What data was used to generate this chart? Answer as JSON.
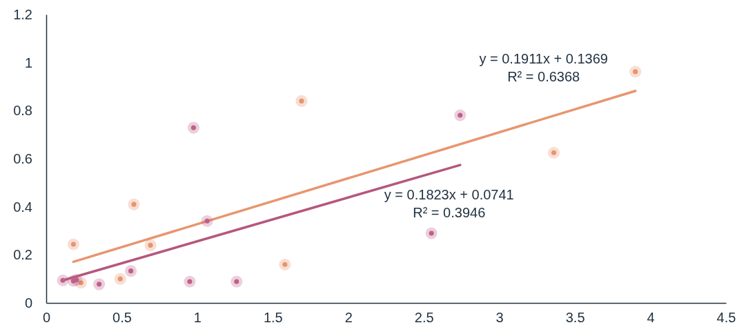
{
  "chart_data": {
    "type": "scatter",
    "xlim": [
      0,
      4.5
    ],
    "ylim": [
      0,
      1.2
    ],
    "xticks": [
      0,
      0.5,
      1,
      1.5,
      2,
      2.5,
      3,
      3.5,
      4,
      4.5
    ],
    "yticks": [
      0,
      0.2,
      0.4,
      0.6,
      0.8,
      1,
      1.2
    ],
    "marker": "circle",
    "grid": false,
    "series": [
      {
        "color": "#e8956f",
        "x": [
          0.18,
          0.23,
          0.49,
          0.58,
          0.69,
          1.58,
          1.69,
          3.36,
          3.9
        ],
        "values": [
          0.244,
          0.084,
          0.1,
          0.41,
          0.24,
          0.16,
          0.84,
          0.625,
          0.962
        ]
      },
      {
        "color": "#c0608a",
        "x": [
          0.11,
          0.18,
          0.2,
          0.35,
          0.56,
          0.95,
          0.975,
          1.065,
          1.26,
          2.55,
          2.74
        ],
        "values": [
          0.094,
          0.092,
          0.096,
          0.078,
          0.133,
          0.089,
          0.729,
          0.341,
          0.089,
          0.29,
          0.781
        ]
      },
      {
        "type": "line",
        "marker": "none",
        "color": "#e8956f",
        "x": [
          0.18,
          3.9
        ],
        "values": [
          0.171,
          0.882
        ]
      },
      {
        "type": "line",
        "marker": "none",
        "color": "#b5577d",
        "x": [
          0.11,
          2.74
        ],
        "values": [
          0.094,
          0.574
        ]
      }
    ],
    "annotations": [
      "y = 0.1911x + 0.1369\nR² = 0.6368",
      "y = 0.1823x + 0.0741\nR² = 0.3946"
    ]
  }
}
